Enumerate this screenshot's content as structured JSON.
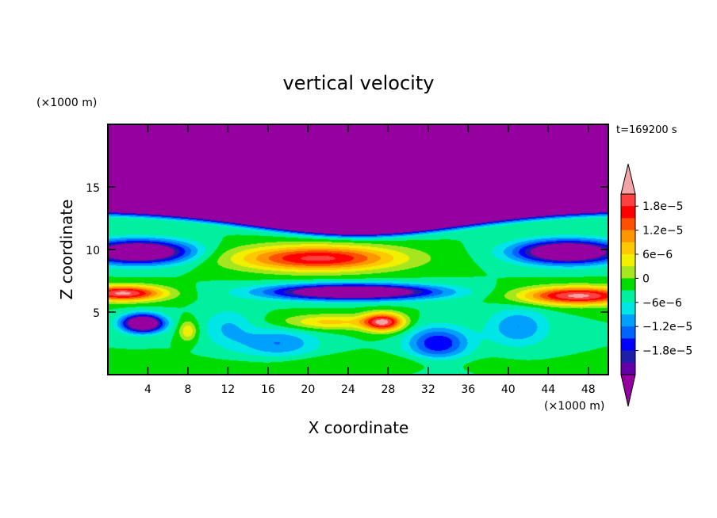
{
  "chart_data": {
    "type": "heatmap",
    "title": "vertical velocity",
    "xlabel": "X coordinate",
    "ylabel": "Z coordinate",
    "x_unit": "(×1000 m)",
    "y_unit": "(×1000 m)",
    "time_label": "t=169200 s",
    "xlim": [
      0,
      50
    ],
    "ylim": [
      0,
      20
    ],
    "x_ticks": [
      "4",
      "8",
      "12",
      "16",
      "20",
      "24",
      "28",
      "32",
      "36",
      "40",
      "44",
      "48"
    ],
    "y_ticks": [
      "5",
      "10",
      "15"
    ],
    "colorbar": {
      "labels": [
        "1.8e−5",
        "1.2e−5",
        "6e−6",
        "0",
        "−6e−6",
        "−1.2e−5",
        "−1.8e−5"
      ],
      "levels_top_to_bottom": [
        2.1e-05,
        1.8e-05,
        1.5e-05,
        1.2e-05,
        9e-06,
        6e-06,
        3e-06,
        0,
        -3e-06,
        -6e-06,
        -9e-06,
        -1.2e-05,
        -1.5e-05,
        -1.8e-05,
        -2.1e-05
      ],
      "colors_top_to_bottom": [
        "#ff4040",
        "#ff0000",
        "#ff5000",
        "#ff9600",
        "#ffc800",
        "#f0f000",
        "#a6e61e",
        "#00dc00",
        "#00f0a0",
        "#00e6e6",
        "#00a0ff",
        "#0064ff",
        "#0000ff",
        "#1e1eaa",
        "#6400aa"
      ],
      "over_color": "#f4a4a4",
      "under_color": "#9600a0"
    },
    "features": [
      {
        "x": 21,
        "z": 9.3,
        "sx": 8,
        "sz": 1.0,
        "amp": 2.2e-05
      },
      {
        "x": 27.5,
        "z": 4.2,
        "sx": 2.0,
        "sz": 0.7,
        "amp": 2.4e-05
      },
      {
        "x": 22,
        "z": 4.2,
        "sx": 4.5,
        "sz": 0.6,
        "amp": 1e-05
      },
      {
        "x": 1.5,
        "z": 6.5,
        "sx": 4,
        "sz": 0.6,
        "amp": 2.5e-05
      },
      {
        "x": 47,
        "z": 6.3,
        "sx": 5.5,
        "sz": 0.7,
        "amp": 2.5e-05
      },
      {
        "x": 8,
        "z": 3.5,
        "sx": 0.9,
        "sz": 0.8,
        "amp": 9e-06
      },
      {
        "x": 3,
        "z": 9.8,
        "sx": 5,
        "sz": 0.9,
        "amp": -3.2e-05
      },
      {
        "x": 46,
        "z": 9.8,
        "sx": 5,
        "sz": 0.9,
        "amp": -3.2e-05
      },
      {
        "x": 24.5,
        "z": 6.6,
        "sx": 8,
        "sz": 0.6,
        "amp": -3.2e-05
      },
      {
        "x": 3.5,
        "z": 4.1,
        "sx": 2,
        "sz": 0.7,
        "amp": -3.2e-05
      },
      {
        "x": 33,
        "z": 2.5,
        "sx": 3,
        "sz": 1.3,
        "amp": -1.5e-05
      },
      {
        "x": 17,
        "z": 2.5,
        "sx": 4,
        "sz": 1.2,
        "amp": -9e-06
      },
      {
        "x": 12,
        "z": 3.8,
        "sx": 2.5,
        "sz": 1.5,
        "amp": -6e-06
      },
      {
        "x": 41,
        "z": 3.8,
        "sx": 3,
        "sz": 1.5,
        "amp": -9e-06
      },
      {
        "x": 25,
        "z": 1.0,
        "sx": 12,
        "sz": 0.6,
        "amp": 3e-06
      }
    ],
    "background_value": -3e-06,
    "upper_region": {
      "boundary_edges": 13.1,
      "boundary_center": 11.2,
      "center_x": 25,
      "width": 15,
      "transition": 0.7,
      "value": -4e-05
    }
  }
}
